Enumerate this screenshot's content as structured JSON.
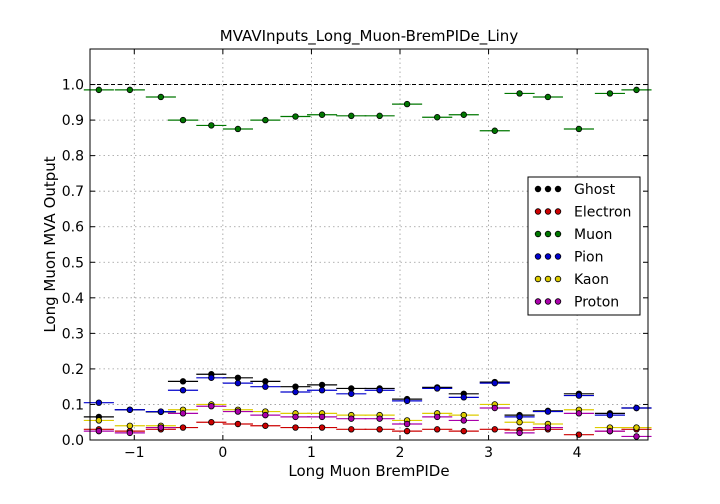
{
  "chart_data": {
    "type": "scatter",
    "title": "MVAVInputs_Long_Muon-BremPIDe_Liny",
    "xlabel": "Long Muon BremPIDe",
    "ylabel": "Long Muon MVA Output",
    "xlim": [
      -1.5,
      4.8
    ],
    "ylim": [
      0.0,
      1.1
    ],
    "xticks": [
      -1,
      0,
      1,
      2,
      3,
      4
    ],
    "xtick_labels": [
      "−1",
      "0",
      "1",
      "2",
      "3",
      "4"
    ],
    "yticks": [
      0.0,
      0.1,
      0.2,
      0.3,
      0.4,
      0.5,
      0.6,
      0.7,
      0.8,
      0.9,
      1.0
    ],
    "ytick_labels": [
      "0.0",
      "0.1",
      "0.2",
      "0.3",
      "0.4",
      "0.5",
      "0.6",
      "0.7",
      "0.8",
      "0.9",
      "1.0"
    ],
    "grid": true,
    "reference_line_y": 1.0,
    "legend_position": "right",
    "bin_half_width": 0.17,
    "x": [
      -1.4,
      -1.05,
      -0.7,
      -0.45,
      -0.13,
      0.17,
      0.48,
      0.82,
      1.12,
      1.45,
      1.77,
      2.08,
      2.42,
      2.72,
      3.07,
      3.35,
      3.67,
      4.02,
      4.37,
      4.67
    ],
    "series": [
      {
        "name": "Ghost",
        "color": "#000000",
        "values": [
          0.065,
          0.085,
          0.079,
          0.165,
          0.185,
          0.175,
          0.165,
          0.15,
          0.155,
          0.145,
          0.145,
          0.115,
          0.148,
          0.13,
          0.163,
          0.07,
          0.082,
          0.13,
          0.075,
          0.09
        ]
      },
      {
        "name": "Electron",
        "color": "#cc0000",
        "values": [
          0.03,
          0.025,
          0.03,
          0.035,
          0.05,
          0.045,
          0.04,
          0.035,
          0.035,
          0.03,
          0.03,
          0.025,
          0.03,
          0.025,
          0.03,
          0.028,
          0.03,
          0.015,
          0.025,
          0.03
        ]
      },
      {
        "name": "Muon",
        "color": "#007700",
        "values": [
          0.985,
          0.985,
          0.965,
          0.9,
          0.885,
          0.875,
          0.9,
          0.91,
          0.915,
          0.912,
          0.912,
          0.945,
          0.908,
          0.915,
          0.87,
          0.975,
          0.965,
          0.875,
          0.975,
          0.985
        ]
      },
      {
        "name": "Pion",
        "color": "#0000cc",
        "values": [
          0.105,
          0.085,
          0.08,
          0.14,
          0.175,
          0.16,
          0.15,
          0.135,
          0.14,
          0.13,
          0.14,
          0.11,
          0.145,
          0.12,
          0.16,
          0.065,
          0.08,
          0.125,
          0.07,
          0.09
        ]
      },
      {
        "name": "Kaon",
        "color": "#ddcc00",
        "values": [
          0.055,
          0.04,
          0.04,
          0.085,
          0.1,
          0.085,
          0.08,
          0.075,
          0.075,
          0.07,
          0.07,
          0.055,
          0.075,
          0.07,
          0.1,
          0.05,
          0.045,
          0.085,
          0.035,
          0.035
        ]
      },
      {
        "name": "Proton",
        "color": "#aa00aa",
        "values": [
          0.025,
          0.02,
          0.035,
          0.075,
          0.095,
          0.08,
          0.07,
          0.065,
          0.065,
          0.06,
          0.06,
          0.045,
          0.065,
          0.055,
          0.09,
          0.02,
          0.035,
          0.075,
          0.025,
          0.01
        ]
      }
    ]
  }
}
